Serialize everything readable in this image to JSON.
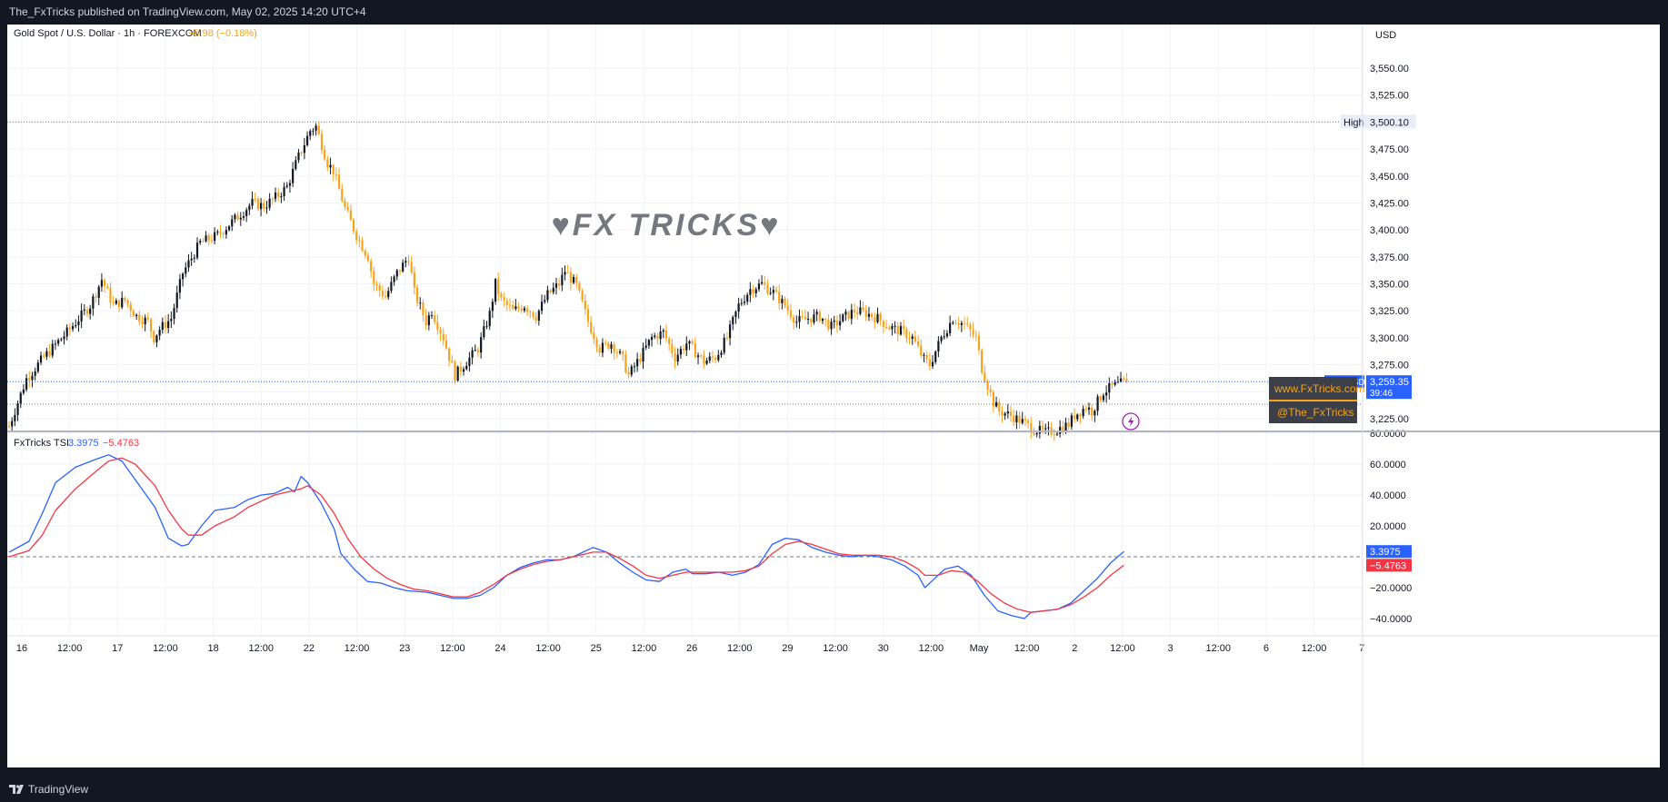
{
  "header": {
    "published": "The_FxTricks published on TradingView.com, May 02, 2025 14:20 UTC+4"
  },
  "footer": {
    "brand": "TradingView",
    "brand_icon": "tradingview-logo-icon"
  },
  "chart": {
    "symbol_title": "Gold Spot / U.S. Dollar · 1h · FOREXCOM",
    "change": "−5.98 (−0.18%)",
    "currency": "USD",
    "watermark": "♥FX TRICKS♥",
    "colors": {
      "up": "#131722",
      "down": "#f7a21b",
      "tsi": "#2962ff",
      "signal": "#f23645",
      "price_tag": "#2962ff"
    }
  },
  "overlays": {
    "website": "www.FxTricks.com",
    "handle": "@The_FxTricks",
    "lightning_icon": "lightning-icon"
  },
  "chart_data": [
    {
      "type": "candlestick",
      "title": "Gold Spot / U.S. Dollar · 1h · FOREXCOM",
      "ylim": [
        3205,
        3580
      ],
      "y_ticks": [
        "3,225.00",
        "3,250.00",
        "3,275.00",
        "3,300.00",
        "3,325.00",
        "3,350.00",
        "3,375.00",
        "3,400.00",
        "3,425.00",
        "3,450.00",
        "3,475.00",
        "3,500.00",
        "3,525.00",
        "3,550.00"
      ],
      "y_tick_values": [
        3225,
        3250,
        3275,
        3300,
        3325,
        3350,
        3375,
        3400,
        3425,
        3450,
        3475,
        3500,
        3525,
        3550
      ],
      "x_ticks": [
        "16",
        "12:00",
        "17",
        "12:00",
        "18",
        "12:00",
        "22",
        "12:00",
        "23",
        "12:00",
        "24",
        "12:00",
        "25",
        "12:00",
        "26",
        "12:00",
        "29",
        "12:00",
        "30",
        "12:00",
        "May",
        "12:00",
        "2",
        "12:00",
        "3",
        "12:00",
        "6",
        "12:00",
        "7"
      ],
      "high_label": "High",
      "high_value_label": "3,500.10",
      "high_value": 3500.1,
      "last_price": 3259.35,
      "last_price_label": "3,259.35",
      "last_symbol": "XAUUSD",
      "countdown": "39:46",
      "grid": true,
      "anchors": [
        [
          0,
          3218
        ],
        [
          6,
          3262
        ],
        [
          12,
          3282
        ],
        [
          20,
          3305
        ],
        [
          28,
          3330
        ],
        [
          32,
          3354
        ],
        [
          36,
          3330
        ],
        [
          40,
          3335
        ],
        [
          44,
          3320
        ],
        [
          48,
          3315
        ],
        [
          50,
          3300
        ],
        [
          52,
          3308
        ],
        [
          56,
          3318
        ],
        [
          60,
          3360
        ],
        [
          66,
          3388
        ],
        [
          72,
          3395
        ],
        [
          78,
          3410
        ],
        [
          84,
          3425
        ],
        [
          88,
          3422
        ],
        [
          92,
          3430
        ],
        [
          96,
          3440
        ],
        [
          100,
          3468
        ],
        [
          104,
          3492
        ],
        [
          106,
          3496
        ],
        [
          110,
          3462
        ],
        [
          112,
          3455
        ],
        [
          116,
          3420
        ],
        [
          120,
          3395
        ],
        [
          124,
          3375
        ],
        [
          126,
          3350
        ],
        [
          130,
          3338
        ],
        [
          134,
          3360
        ],
        [
          138,
          3375
        ],
        [
          140,
          3342
        ],
        [
          144,
          3315
        ],
        [
          146,
          3325
        ],
        [
          150,
          3300
        ],
        [
          154,
          3265
        ],
        [
          158,
          3278
        ],
        [
          162,
          3290
        ],
        [
          166,
          3322
        ],
        [
          168,
          3350
        ],
        [
          170,
          3335
        ],
        [
          174,
          3325
        ],
        [
          178,
          3330
        ],
        [
          182,
          3320
        ],
        [
          186,
          3340
        ],
        [
          190,
          3350
        ],
        [
          192,
          3362
        ],
        [
          196,
          3348
        ],
        [
          200,
          3315
        ],
        [
          204,
          3290
        ],
        [
          208,
          3295
        ],
        [
          212,
          3280
        ],
        [
          214,
          3265
        ],
        [
          218,
          3282
        ],
        [
          222,
          3300
        ],
        [
          226,
          3305
        ],
        [
          230,
          3282
        ],
        [
          234,
          3295
        ],
        [
          236,
          3290
        ],
        [
          240,
          3278
        ],
        [
          244,
          3282
        ],
        [
          248,
          3300
        ],
        [
          252,
          3330
        ],
        [
          256,
          3345
        ],
        [
          260,
          3350
        ],
        [
          264,
          3342
        ],
        [
          268,
          3330
        ],
        [
          272,
          3315
        ],
        [
          276,
          3318
        ],
        [
          280,
          3320
        ],
        [
          284,
          3310
        ],
        [
          288,
          3318
        ],
        [
          292,
          3325
        ],
        [
          296,
          3323
        ],
        [
          300,
          3318
        ],
        [
          304,
          3310
        ],
        [
          308,
          3306
        ],
        [
          312,
          3300
        ],
        [
          316,
          3280
        ],
        [
          318,
          3275
        ],
        [
          322,
          3300
        ],
        [
          326,
          3318
        ],
        [
          330,
          3312
        ],
        [
          334,
          3300
        ],
        [
          336,
          3272
        ],
        [
          340,
          3240
        ],
        [
          342,
          3232
        ],
        [
          346,
          3228
        ],
        [
          350,
          3222
        ],
        [
          354,
          3215
        ],
        [
          358,
          3212
        ],
        [
          362,
          3215
        ],
        [
          366,
          3220
        ],
        [
          368,
          3228
        ],
        [
          372,
          3236
        ],
        [
          374,
          3232
        ],
        [
          378,
          3250
        ],
        [
          382,
          3256
        ],
        [
          386,
          3259.35
        ]
      ],
      "n_bars": 387
    },
    {
      "type": "line",
      "title": "FxTricks TSI",
      "series": [
        {
          "name": "",
          "value_label": "3.3975",
          "last": 3.3975,
          "points": [
            [
              0,
              3
            ],
            [
              6,
              10
            ],
            [
              10,
              28
            ],
            [
              14,
              48
            ],
            [
              20,
              58
            ],
            [
              26,
              63
            ],
            [
              30,
              66
            ],
            [
              34,
              62
            ],
            [
              38,
              50
            ],
            [
              44,
              32
            ],
            [
              48,
              12
            ],
            [
              52,
              7
            ],
            [
              54,
              8
            ],
            [
              58,
              20
            ],
            [
              62,
              30
            ],
            [
              68,
              32
            ],
            [
              72,
              37
            ],
            [
              76,
              40
            ],
            [
              80,
              41
            ],
            [
              84,
              45
            ],
            [
              86,
              42
            ],
            [
              88,
              52
            ],
            [
              90,
              48
            ],
            [
              94,
              35
            ],
            [
              98,
              18
            ],
            [
              100,
              2
            ],
            [
              104,
              -8
            ],
            [
              108,
              -16
            ],
            [
              112,
              -17
            ],
            [
              116,
              -20
            ],
            [
              120,
              -22
            ],
            [
              126,
              -23
            ],
            [
              130,
              -25
            ],
            [
              134,
              -27
            ],
            [
              138,
              -27
            ],
            [
              142,
              -25
            ],
            [
              146,
              -20
            ],
            [
              150,
              -12
            ],
            [
              154,
              -7
            ],
            [
              158,
              -4
            ],
            [
              162,
              -2
            ],
            [
              166,
              -2
            ],
            [
              170,
              0
            ],
            [
              174,
              4
            ],
            [
              176,
              6
            ],
            [
              180,
              3
            ],
            [
              184,
              -4
            ],
            [
              188,
              -10
            ],
            [
              192,
              -15
            ],
            [
              196,
              -16
            ],
            [
              200,
              -10
            ],
            [
              204,
              -8
            ],
            [
              206,
              -11
            ],
            [
              210,
              -11
            ],
            [
              214,
              -10
            ],
            [
              218,
              -12
            ],
            [
              222,
              -10
            ],
            [
              226,
              -5
            ],
            [
              230,
              8
            ],
            [
              234,
              12
            ],
            [
              238,
              11
            ],
            [
              242,
              6
            ],
            [
              246,
              3
            ],
            [
              250,
              1
            ],
            [
              254,
              0
            ],
            [
              258,
              1
            ],
            [
              262,
              0
            ],
            [
              266,
              -2
            ],
            [
              270,
              -6
            ],
            [
              274,
              -12
            ],
            [
              276,
              -20
            ],
            [
              278,
              -16
            ],
            [
              282,
              -8
            ],
            [
              286,
              -6
            ],
            [
              290,
              -12
            ],
            [
              294,
              -25
            ],
            [
              298,
              -35
            ],
            [
              302,
              -38
            ],
            [
              306,
              -40
            ],
            [
              308,
              -36
            ],
            [
              312,
              -35
            ],
            [
              316,
              -34
            ],
            [
              320,
              -30
            ],
            [
              324,
              -22
            ],
            [
              328,
              -14
            ],
            [
              332,
              -4
            ],
            [
              336,
              3.3975
            ]
          ]
        },
        {
          "name": "",
          "value_label": "−5.4763",
          "last": -5.4763,
          "points": [
            [
              0,
              0
            ],
            [
              6,
              4
            ],
            [
              10,
              14
            ],
            [
              14,
              30
            ],
            [
              20,
              44
            ],
            [
              26,
              55
            ],
            [
              30,
              62
            ],
            [
              34,
              64
            ],
            [
              38,
              60
            ],
            [
              44,
              46
            ],
            [
              48,
              30
            ],
            [
              52,
              18
            ],
            [
              54,
              14
            ],
            [
              58,
              14
            ],
            [
              62,
              20
            ],
            [
              68,
              26
            ],
            [
              72,
              32
            ],
            [
              76,
              36
            ],
            [
              80,
              40
            ],
            [
              84,
              42
            ],
            [
              88,
              44
            ],
            [
              90,
              46
            ],
            [
              94,
              40
            ],
            [
              98,
              28
            ],
            [
              102,
              12
            ],
            [
              106,
              0
            ],
            [
              110,
              -8
            ],
            [
              114,
              -14
            ],
            [
              118,
              -18
            ],
            [
              122,
              -21
            ],
            [
              126,
              -22
            ],
            [
              130,
              -24
            ],
            [
              134,
              -26
            ],
            [
              138,
              -26
            ],
            [
              142,
              -23
            ],
            [
              146,
              -18
            ],
            [
              150,
              -12
            ],
            [
              154,
              -8
            ],
            [
              158,
              -5
            ],
            [
              162,
              -3
            ],
            [
              166,
              -2
            ],
            [
              170,
              0
            ],
            [
              174,
              2
            ],
            [
              176,
              3
            ],
            [
              180,
              3
            ],
            [
              184,
              -1
            ],
            [
              188,
              -6
            ],
            [
              192,
              -12
            ],
            [
              196,
              -14
            ],
            [
              200,
              -12
            ],
            [
              204,
              -10
            ],
            [
              210,
              -10
            ],
            [
              214,
              -10
            ],
            [
              218,
              -10
            ],
            [
              222,
              -9
            ],
            [
              226,
              -6
            ],
            [
              230,
              2
            ],
            [
              234,
              8
            ],
            [
              238,
              10
            ],
            [
              242,
              8
            ],
            [
              246,
              5
            ],
            [
              250,
              2
            ],
            [
              254,
              1
            ],
            [
              258,
              1
            ],
            [
              262,
              1
            ],
            [
              266,
              0
            ],
            [
              270,
              -3
            ],
            [
              274,
              -8
            ],
            [
              276,
              -12
            ],
            [
              280,
              -12
            ],
            [
              284,
              -9
            ],
            [
              288,
              -10
            ],
            [
              292,
              -16
            ],
            [
              296,
              -24
            ],
            [
              300,
              -30
            ],
            [
              304,
              -34
            ],
            [
              308,
              -36
            ],
            [
              312,
              -35
            ],
            [
              316,
              -34
            ],
            [
              320,
              -31
            ],
            [
              324,
              -26
            ],
            [
              328,
              -20
            ],
            [
              332,
              -12
            ],
            [
              336,
              -5.4763
            ]
          ]
        }
      ],
      "ylim": [
        -50,
        80
      ],
      "y_ticks": [
        "−40.0000",
        "−20.0000",
        "20.0000",
        "40.0000",
        "60.0000",
        "80.0000"
      ],
      "y_tick_values": [
        -40,
        -20,
        20,
        40,
        60,
        80
      ],
      "zero_line": 0
    }
  ]
}
